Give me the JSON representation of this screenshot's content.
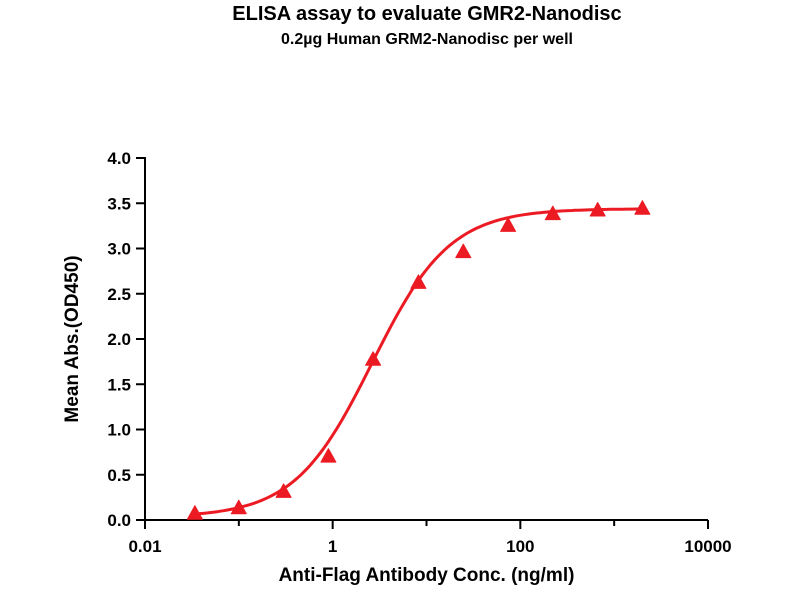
{
  "chart_data": {
    "type": "scatter",
    "title": "ELISA assay to evaluate GMR2-Nanodisc",
    "subtitle": "0.2µg Human GRM2-Nanodisc per well",
    "xlabel": "Anti-Flag Antibody Conc. (ng/ml)",
    "ylabel": "Mean Abs.(OD450)",
    "xscale": "log",
    "xlim": [
      0.01,
      10000
    ],
    "ylim": [
      0,
      4
    ],
    "x": [
      0.034,
      0.1,
      0.3,
      0.9,
      2.7,
      8.2,
      24.7,
      74,
      222,
      667,
      2000
    ],
    "y": [
      0.07,
      0.13,
      0.31,
      0.7,
      1.77,
      2.62,
      2.96,
      3.25,
      3.38,
      3.42,
      3.44
    ],
    "xticks": [
      {
        "value": 0.01,
        "label": "0.01"
      },
      {
        "value": 1,
        "label": "1"
      },
      {
        "value": 100,
        "label": "100"
      },
      {
        "value": 10000,
        "label": "10000"
      }
    ],
    "xticks_minor": [
      0.1,
      10,
      1000
    ],
    "yticks": [
      {
        "value": 0.0,
        "label": "0.0"
      },
      {
        "value": 0.5,
        "label": "0.5"
      },
      {
        "value": 1.0,
        "label": "1.0"
      },
      {
        "value": 1.5,
        "label": "1.5"
      },
      {
        "value": 2.0,
        "label": "2.0"
      },
      {
        "value": 2.5,
        "label": "2.5"
      },
      {
        "value": 3.0,
        "label": "3.0"
      },
      {
        "value": 3.5,
        "label": "3.5"
      },
      {
        "value": 4.0,
        "label": "4.0"
      }
    ],
    "series_color": "#ec1b23",
    "axis_color": "#000000",
    "marker": "triangle",
    "legend": "none",
    "grid": false,
    "fit_4pl": {
      "bottom": 0.03,
      "top": 3.44,
      "logEC50": 0.42,
      "hill": 1.05
    }
  }
}
